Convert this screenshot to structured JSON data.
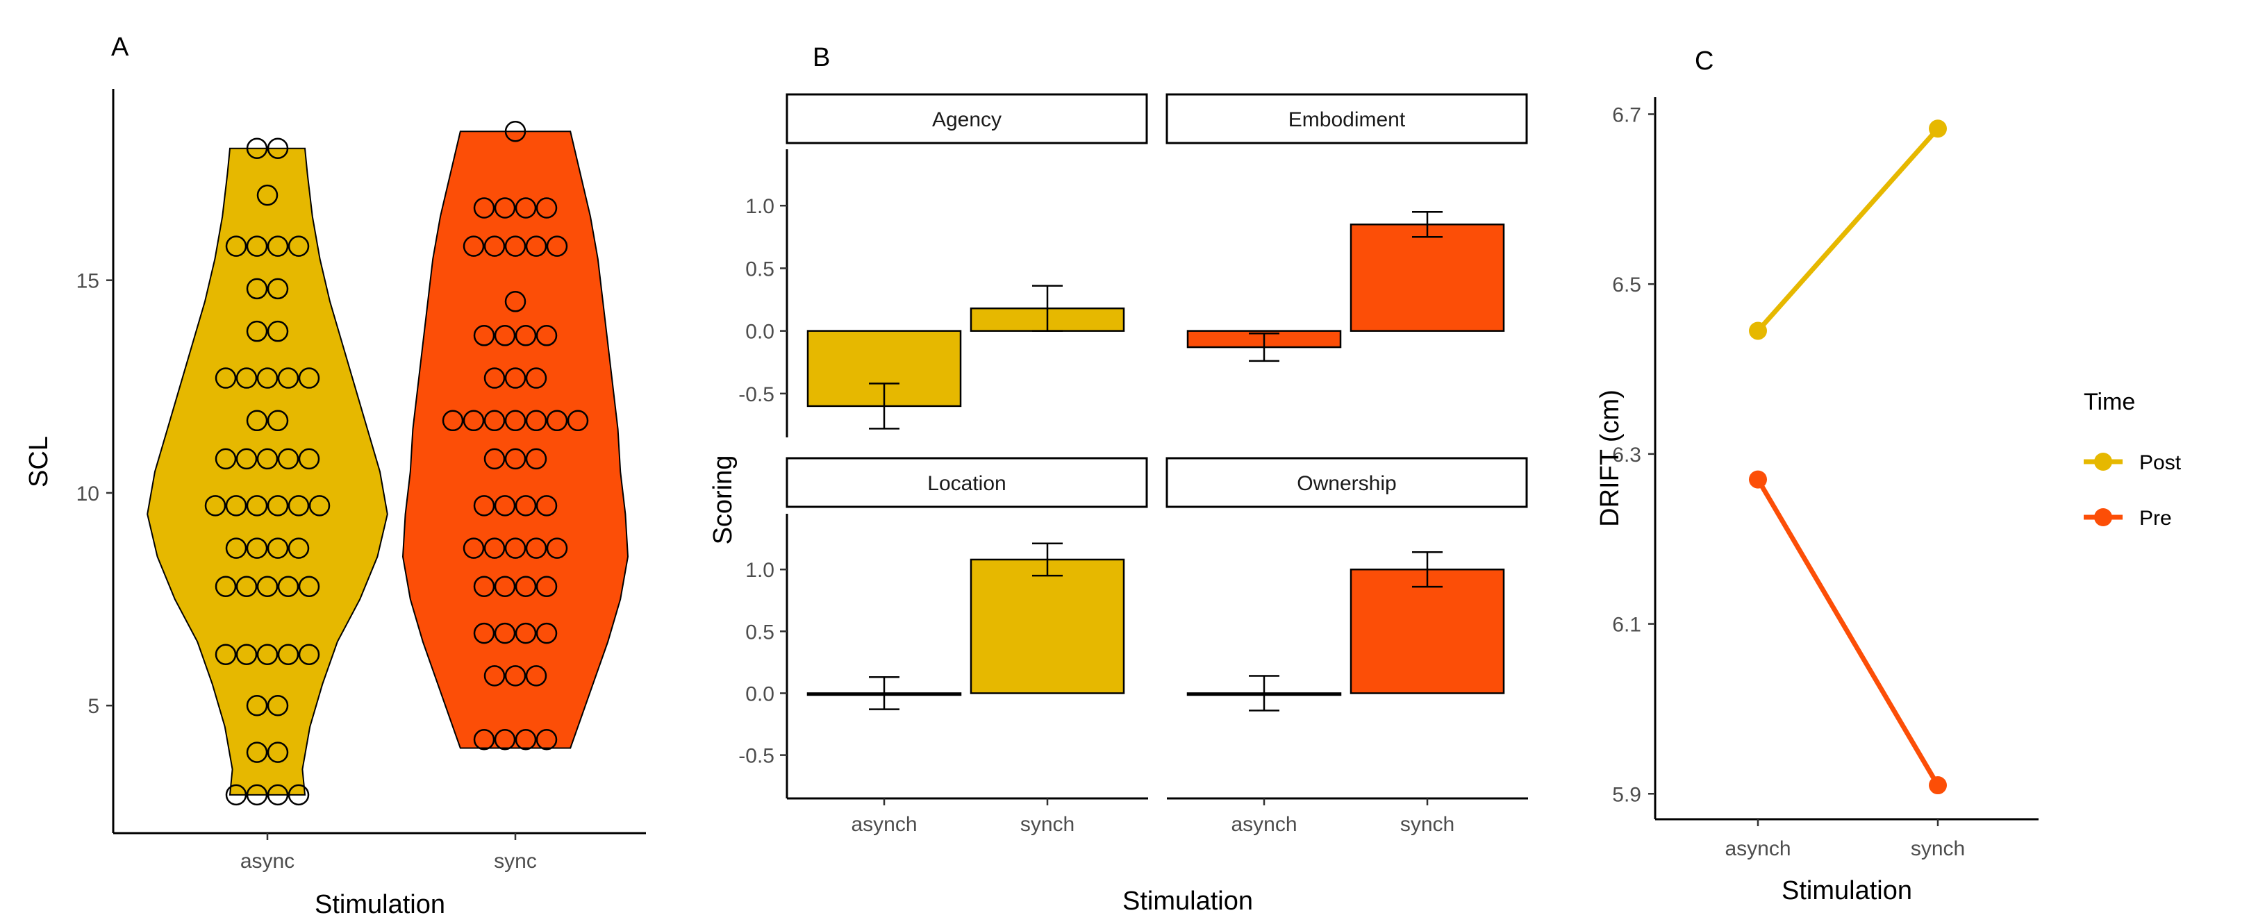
{
  "colors": {
    "post_or_async": "#E6B800",
    "pre_or_sync": "#FC4E07"
  },
  "chart_data": [
    {
      "panel": "A",
      "type": "violin",
      "xlabel": "Stimulation",
      "ylabel": "SCL",
      "categories": [
        "async",
        "sync"
      ],
      "ylim": [
        2,
        19.5
      ],
      "yticks": [
        5,
        10,
        15
      ],
      "series": [
        {
          "name": "async",
          "color": "#E6B800",
          "range": [
            2.9,
            18.1
          ],
          "dot_rows": [
            {
              "y": 18.1,
              "n": 2
            },
            {
              "y": 17.0,
              "n": 1
            },
            {
              "y": 15.8,
              "n": 4
            },
            {
              "y": 14.8,
              "n": 2
            },
            {
              "y": 13.8,
              "n": 2
            },
            {
              "y": 12.7,
              "n": 5
            },
            {
              "y": 11.7,
              "n": 2
            },
            {
              "y": 10.8,
              "n": 5
            },
            {
              "y": 9.7,
              "n": 6
            },
            {
              "y": 8.7,
              "n": 4
            },
            {
              "y": 7.8,
              "n": 5
            },
            {
              "y": 6.2,
              "n": 5
            },
            {
              "y": 5.0,
              "n": 2
            },
            {
              "y": 3.9,
              "n": 2
            },
            {
              "y": 2.9,
              "n": 4
            }
          ],
          "density": [
            [
              2.9,
              0.3
            ],
            [
              3.5,
              0.28
            ],
            [
              4.5,
              0.34
            ],
            [
              5.5,
              0.44
            ],
            [
              6.5,
              0.56
            ],
            [
              7.5,
              0.74
            ],
            [
              8.5,
              0.88
            ],
            [
              9.5,
              0.96
            ],
            [
              10.5,
              0.9
            ],
            [
              11.5,
              0.8
            ],
            [
              12.5,
              0.7
            ],
            [
              13.5,
              0.6
            ],
            [
              14.5,
              0.5
            ],
            [
              15.5,
              0.42
            ],
            [
              16.5,
              0.36
            ],
            [
              17.5,
              0.32
            ],
            [
              18.1,
              0.3
            ]
          ]
        },
        {
          "name": "sync",
          "color": "#FC4E07",
          "range": [
            4.0,
            18.5
          ],
          "dot_rows": [
            {
              "y": 18.5,
              "n": 1
            },
            {
              "y": 16.7,
              "n": 4
            },
            {
              "y": 15.8,
              "n": 5
            },
            {
              "y": 14.5,
              "n": 1
            },
            {
              "y": 13.7,
              "n": 4
            },
            {
              "y": 12.7,
              "n": 3
            },
            {
              "y": 11.7,
              "n": 7
            },
            {
              "y": 10.8,
              "n": 3
            },
            {
              "y": 9.7,
              "n": 4
            },
            {
              "y": 8.7,
              "n": 5
            },
            {
              "y": 7.8,
              "n": 4
            },
            {
              "y": 6.7,
              "n": 4
            },
            {
              "y": 5.7,
              "n": 3
            },
            {
              "y": 4.2,
              "n": 4
            }
          ],
          "density": [
            [
              4.0,
              0.44
            ],
            [
              4.5,
              0.5
            ],
            [
              5.5,
              0.62
            ],
            [
              6.5,
              0.74
            ],
            [
              7.5,
              0.84
            ],
            [
              8.5,
              0.9
            ],
            [
              9.5,
              0.88
            ],
            [
              10.5,
              0.84
            ],
            [
              11.5,
              0.82
            ],
            [
              12.5,
              0.78
            ],
            [
              13.5,
              0.74
            ],
            [
              14.5,
              0.7
            ],
            [
              15.5,
              0.66
            ],
            [
              16.5,
              0.6
            ],
            [
              17.5,
              0.52
            ],
            [
              18.0,
              0.48
            ],
            [
              18.5,
              0.44
            ]
          ]
        }
      ]
    },
    {
      "panel": "B",
      "type": "bar",
      "xlabel": "Stimulation",
      "ylabel": "Scoring",
      "categories": [
        "asynch",
        "synch"
      ],
      "ylim": [
        -0.85,
        1.45
      ],
      "yticks": [
        -0.5,
        0.0,
        0.5,
        1.0
      ],
      "ytick_labels": [
        "-0.5",
        "0.0",
        "0.5",
        "1.0"
      ],
      "facets": [
        {
          "label": "Agency",
          "colors": [
            "#E6B800",
            "#E6B800"
          ],
          "values": [
            -0.6,
            0.18
          ],
          "errors": [
            0.18,
            0.18
          ]
        },
        {
          "label": "Embodiment",
          "colors": [
            "#FC4E07",
            "#FC4E07"
          ],
          "values": [
            -0.13,
            0.85
          ],
          "errors": [
            0.11,
            0.1
          ]
        },
        {
          "label": "Location",
          "colors": [
            "#E6B800",
            "#E6B800"
          ],
          "values": [
            0.0,
            1.08
          ],
          "errors": [
            0.13,
            0.13
          ]
        },
        {
          "label": "Ownership",
          "colors": [
            "#FC4E07",
            "#FC4E07"
          ],
          "values": [
            0.0,
            1.0
          ],
          "errors": [
            0.14,
            0.14
          ]
        }
      ]
    },
    {
      "panel": "C",
      "type": "line",
      "xlabel": "Stimulation",
      "ylabel": "DRIFT (cm)",
      "categories": [
        "asynch",
        "synch"
      ],
      "ylim": [
        5.87,
        6.72
      ],
      "yticks": [
        5.9,
        6.1,
        6.3,
        6.5,
        6.7
      ],
      "ytick_labels": [
        "5.9",
        "6.1",
        "6.3",
        "6.5",
        "6.7"
      ],
      "legend_title": "Time",
      "series": [
        {
          "name": "Post",
          "color": "#E6B800",
          "values": [
            6.445,
            6.683
          ]
        },
        {
          "name": "Pre",
          "color": "#FC4E07",
          "values": [
            6.27,
            5.91
          ]
        }
      ]
    }
  ]
}
